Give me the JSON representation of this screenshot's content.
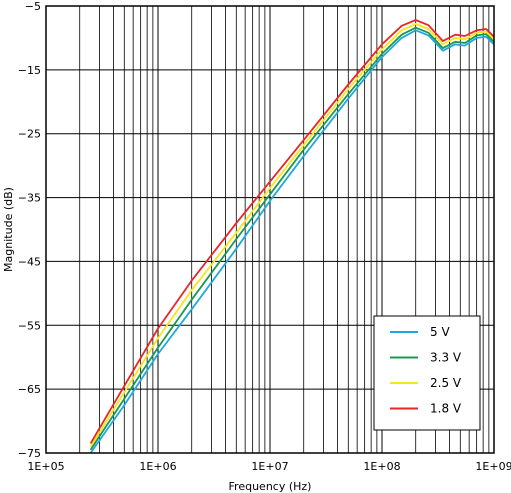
{
  "chart_data": {
    "type": "line",
    "title": "",
    "xlabel": "Frequency (Hz)",
    "ylabel": "Magnitude (dB)",
    "xscale": "log",
    "xlim": [
      100000,
      1000000000
    ],
    "ylim": [
      -75,
      -5
    ],
    "xticks": [
      {
        "value": 100000,
        "label": "1E+05"
      },
      {
        "value": 1000000,
        "label": "1E+06"
      },
      {
        "value": 10000000,
        "label": "1E+07"
      },
      {
        "value": 100000000,
        "label": "1E+08"
      },
      {
        "value": 1000000000,
        "label": "1E+09"
      }
    ],
    "yticks": [
      {
        "value": -5,
        "label": "−5"
      },
      {
        "value": -15,
        "label": "−15"
      },
      {
        "value": -25,
        "label": "−25"
      },
      {
        "value": -35,
        "label": "−35"
      },
      {
        "value": -45,
        "label": "−45"
      },
      {
        "value": -55,
        "label": "−55"
      },
      {
        "value": -65,
        "label": "−65"
      },
      {
        "value": -75,
        "label": "−75"
      }
    ],
    "grid": true,
    "legend_position": "bottom-right",
    "series": [
      {
        "name": "5 V",
        "color": "#1ea8e0",
        "x": [
          250000,
          500000,
          1000000,
          2000000,
          5000000,
          10000000,
          20000000,
          50000000,
          100000000,
          150000000,
          200000000,
          260000000,
          350000000,
          450000000,
          550000000,
          700000000,
          850000000,
          1000000000
        ],
        "y": [
          -75.0,
          -67.5,
          -59.5,
          -52.5,
          -43.0,
          -35.5,
          -28.5,
          -19.5,
          -13.0,
          -10.0,
          -8.8,
          -9.6,
          -12.0,
          -11.0,
          -11.2,
          -10.0,
          -9.8,
          -11.0
        ]
      },
      {
        "name": "3.3 V",
        "color": "#1a9850",
        "x": [
          250000,
          500000,
          1000000,
          2000000,
          5000000,
          10000000,
          20000000,
          50000000,
          100000000,
          150000000,
          200000000,
          260000000,
          350000000,
          450000000,
          550000000,
          700000000,
          850000000,
          1000000000
        ],
        "y": [
          -74.5,
          -66.5,
          -58.5,
          -51.0,
          -41.5,
          -34.5,
          -27.5,
          -18.8,
          -12.5,
          -9.5,
          -8.4,
          -9.2,
          -11.6,
          -10.6,
          -10.8,
          -9.6,
          -9.4,
          -10.6
        ]
      },
      {
        "name": "2.5 V",
        "color": "#f5e61a",
        "x": [
          250000,
          500000,
          1000000,
          2000000,
          5000000,
          10000000,
          20000000,
          50000000,
          100000000,
          150000000,
          200000000,
          260000000,
          350000000,
          450000000,
          550000000,
          700000000,
          850000000,
          1000000000
        ],
        "y": [
          -74.0,
          -65.5,
          -57.0,
          -49.5,
          -40.5,
          -33.5,
          -26.8,
          -18.0,
          -11.8,
          -8.8,
          -7.8,
          -8.6,
          -11.0,
          -10.0,
          -10.2,
          -9.2,
          -9.0,
          -10.2
        ]
      },
      {
        "name": "1.8 V",
        "color": "#e8262a",
        "x": [
          250000,
          500000,
          1000000,
          2000000,
          5000000,
          10000000,
          20000000,
          50000000,
          100000000,
          150000000,
          200000000,
          260000000,
          350000000,
          450000000,
          550000000,
          700000000,
          850000000,
          1000000000
        ],
        "y": [
          -73.5,
          -64.5,
          -55.5,
          -48.0,
          -39.0,
          -32.5,
          -26.0,
          -17.3,
          -11.0,
          -8.1,
          -7.2,
          -8.0,
          -10.5,
          -9.5,
          -9.7,
          -8.8,
          -8.6,
          -9.8
        ]
      }
    ]
  }
}
